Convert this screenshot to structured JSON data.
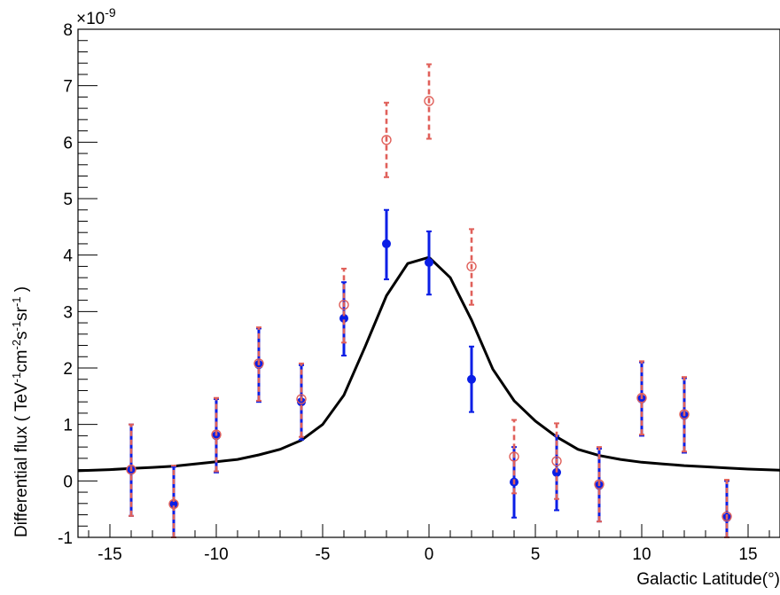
{
  "chart_data": {
    "type": "scatter",
    "title": "",
    "xlabel": "Galactic Latitude(°)",
    "ylabel_parts": [
      "Differential flux ( TeV",
      "-1",
      "cm",
      "-2",
      "s",
      "-1",
      "sr",
      "-1",
      " )"
    ],
    "y_exponent_label": "×10",
    "y_exponent_power": "-9",
    "xlim": [
      -16.5,
      16.5
    ],
    "ylim": [
      -1,
      8
    ],
    "x_ticks": [
      -15,
      -10,
      -5,
      0,
      5,
      10,
      15
    ],
    "y_ticks": [
      -1,
      0,
      1,
      2,
      3,
      4,
      5,
      6,
      7,
      8
    ],
    "colors": {
      "filled_series": "#0a1ee6",
      "open_series": "#e0605a",
      "model_curve": "#000000"
    },
    "series": [
      {
        "marker": "filled-circle",
        "points": [
          {
            "x": -14,
            "y": 0.19,
            "lo": -0.62,
            "hi": 1.0
          },
          {
            "x": -12,
            "y": -0.42,
            "lo": -1.0,
            "hi": 0.25
          },
          {
            "x": -10,
            "y": 0.8,
            "lo": 0.15,
            "hi": 1.45
          },
          {
            "x": -8,
            "y": 2.06,
            "lo": 1.4,
            "hi": 2.7
          },
          {
            "x": -6,
            "y": 1.4,
            "lo": 0.73,
            "hi": 2.05
          },
          {
            "x": -4,
            "y": 2.88,
            "lo": 2.22,
            "hi": 3.52
          },
          {
            "x": -2,
            "y": 4.2,
            "lo": 3.57,
            "hi": 4.8
          },
          {
            "x": 0,
            "y": 3.87,
            "lo": 3.3,
            "hi": 4.42
          },
          {
            "x": 2,
            "y": 1.8,
            "lo": 1.22,
            "hi": 2.38
          },
          {
            "x": 4,
            "y": -0.02,
            "lo": -0.65,
            "hi": 0.6
          },
          {
            "x": 6,
            "y": 0.15,
            "lo": -0.52,
            "hi": 0.8
          },
          {
            "x": 8,
            "y": -0.08,
            "lo": -0.72,
            "hi": 0.57
          },
          {
            "x": 10,
            "y": 1.45,
            "lo": 0.8,
            "hi": 2.1
          },
          {
            "x": 12,
            "y": 1.16,
            "lo": 0.5,
            "hi": 1.82
          },
          {
            "x": 14,
            "y": -0.65,
            "lo": -1.0,
            "hi": 0.0
          }
        ]
      },
      {
        "marker": "open-circle",
        "points": [
          {
            "x": -14,
            "y": 0.2,
            "lo": -0.62,
            "hi": 1.0
          },
          {
            "x": -12,
            "y": -0.41,
            "lo": -1.0,
            "hi": 0.27
          },
          {
            "x": -10,
            "y": 0.82,
            "lo": 0.17,
            "hi": 1.47
          },
          {
            "x": -8,
            "y": 2.08,
            "lo": 1.42,
            "hi": 2.72
          },
          {
            "x": -6,
            "y": 1.45,
            "lo": 0.78,
            "hi": 2.08
          },
          {
            "x": -4,
            "y": 3.12,
            "lo": 2.45,
            "hi": 3.76
          },
          {
            "x": -2,
            "y": 6.04,
            "lo": 5.38,
            "hi": 6.7
          },
          {
            "x": 0,
            "y": 6.73,
            "lo": 6.06,
            "hi": 7.38
          },
          {
            "x": 2,
            "y": 3.8,
            "lo": 3.12,
            "hi": 4.46
          },
          {
            "x": 4,
            "y": 0.43,
            "lo": -0.22,
            "hi": 1.08
          },
          {
            "x": 6,
            "y": 0.35,
            "lo": -0.32,
            "hi": 1.02
          },
          {
            "x": 8,
            "y": -0.06,
            "lo": -0.72,
            "hi": 0.6
          },
          {
            "x": 10,
            "y": 1.47,
            "lo": 0.82,
            "hi": 2.12
          },
          {
            "x": 12,
            "y": 1.18,
            "lo": 0.52,
            "hi": 1.84
          },
          {
            "x": 14,
            "y": -0.63,
            "lo": -1.0,
            "hi": 0.02
          }
        ]
      },
      {
        "marker": "line",
        "points": [
          {
            "x": -16.5,
            "y": 0.18
          },
          {
            "x": -15,
            "y": 0.2
          },
          {
            "x": -14,
            "y": 0.22
          },
          {
            "x": -13,
            "y": 0.24
          },
          {
            "x": -12,
            "y": 0.26
          },
          {
            "x": -11,
            "y": 0.3
          },
          {
            "x": -10,
            "y": 0.34
          },
          {
            "x": -9,
            "y": 0.38
          },
          {
            "x": -8,
            "y": 0.46
          },
          {
            "x": -7,
            "y": 0.56
          },
          {
            "x": -6,
            "y": 0.72
          },
          {
            "x": -5,
            "y": 1.0
          },
          {
            "x": -4,
            "y": 1.52
          },
          {
            "x": -3,
            "y": 2.38
          },
          {
            "x": -2,
            "y": 3.28
          },
          {
            "x": -1,
            "y": 3.85
          },
          {
            "x": 0,
            "y": 3.96
          },
          {
            "x": 1,
            "y": 3.6
          },
          {
            "x": 2,
            "y": 2.85
          },
          {
            "x": 3,
            "y": 1.98
          },
          {
            "x": 4,
            "y": 1.42
          },
          {
            "x": 5,
            "y": 1.06
          },
          {
            "x": 6,
            "y": 0.78
          },
          {
            "x": 7,
            "y": 0.56
          },
          {
            "x": 8,
            "y": 0.45
          },
          {
            "x": 9,
            "y": 0.38
          },
          {
            "x": 10,
            "y": 0.33
          },
          {
            "x": 11,
            "y": 0.3
          },
          {
            "x": 12,
            "y": 0.27
          },
          {
            "x": 13,
            "y": 0.25
          },
          {
            "x": 14,
            "y": 0.23
          },
          {
            "x": 15,
            "y": 0.21
          },
          {
            "x": 16.5,
            "y": 0.19
          }
        ]
      }
    ]
  }
}
